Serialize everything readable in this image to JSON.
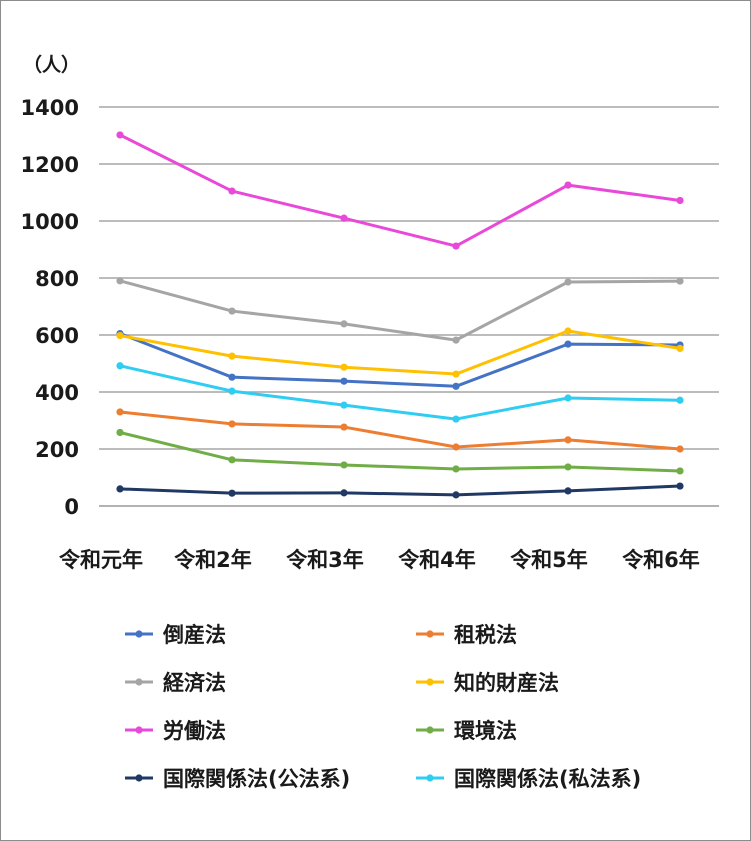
{
  "chart_data": {
    "type": "line",
    "y_unit_label": "（人）",
    "categories": [
      "令和元年",
      "令和2年",
      "令和3年",
      "令和4年",
      "令和5年",
      "令和6年"
    ],
    "ylim": [
      0,
      1400
    ],
    "yticks": [
      0,
      200,
      400,
      600,
      800,
      1000,
      1200,
      1400
    ],
    "grid": true,
    "legend_position": "bottom",
    "series": [
      {
        "name": "倒産法",
        "color": "#4472c4",
        "values": [
          605,
          452,
          438,
          420,
          568,
          565
        ]
      },
      {
        "name": "租税法",
        "color": "#ed7d31",
        "values": [
          330,
          288,
          277,
          207,
          232,
          200
        ]
      },
      {
        "name": "経済法",
        "color": "#a5a5a5",
        "values": [
          790,
          684,
          639,
          582,
          786,
          789
        ]
      },
      {
        "name": "知的財産法",
        "color": "#ffc000",
        "values": [
          598,
          526,
          487,
          463,
          614,
          553
        ]
      },
      {
        "name": "労働法",
        "color": "#e849d8",
        "values": [
          1302,
          1105,
          1010,
          912,
          1126,
          1072
        ]
      },
      {
        "name": "環境法",
        "color": "#70ad47",
        "values": [
          258,
          162,
          144,
          130,
          137,
          123
        ]
      },
      {
        "name": "国際関係法(公法系)",
        "color": "#203864",
        "values": [
          60,
          45,
          46,
          39,
          53,
          70
        ]
      },
      {
        "name": "国際関係法(私法系)",
        "color": "#30cdf2",
        "values": [
          492,
          403,
          354,
          305,
          379,
          371
        ]
      }
    ]
  }
}
